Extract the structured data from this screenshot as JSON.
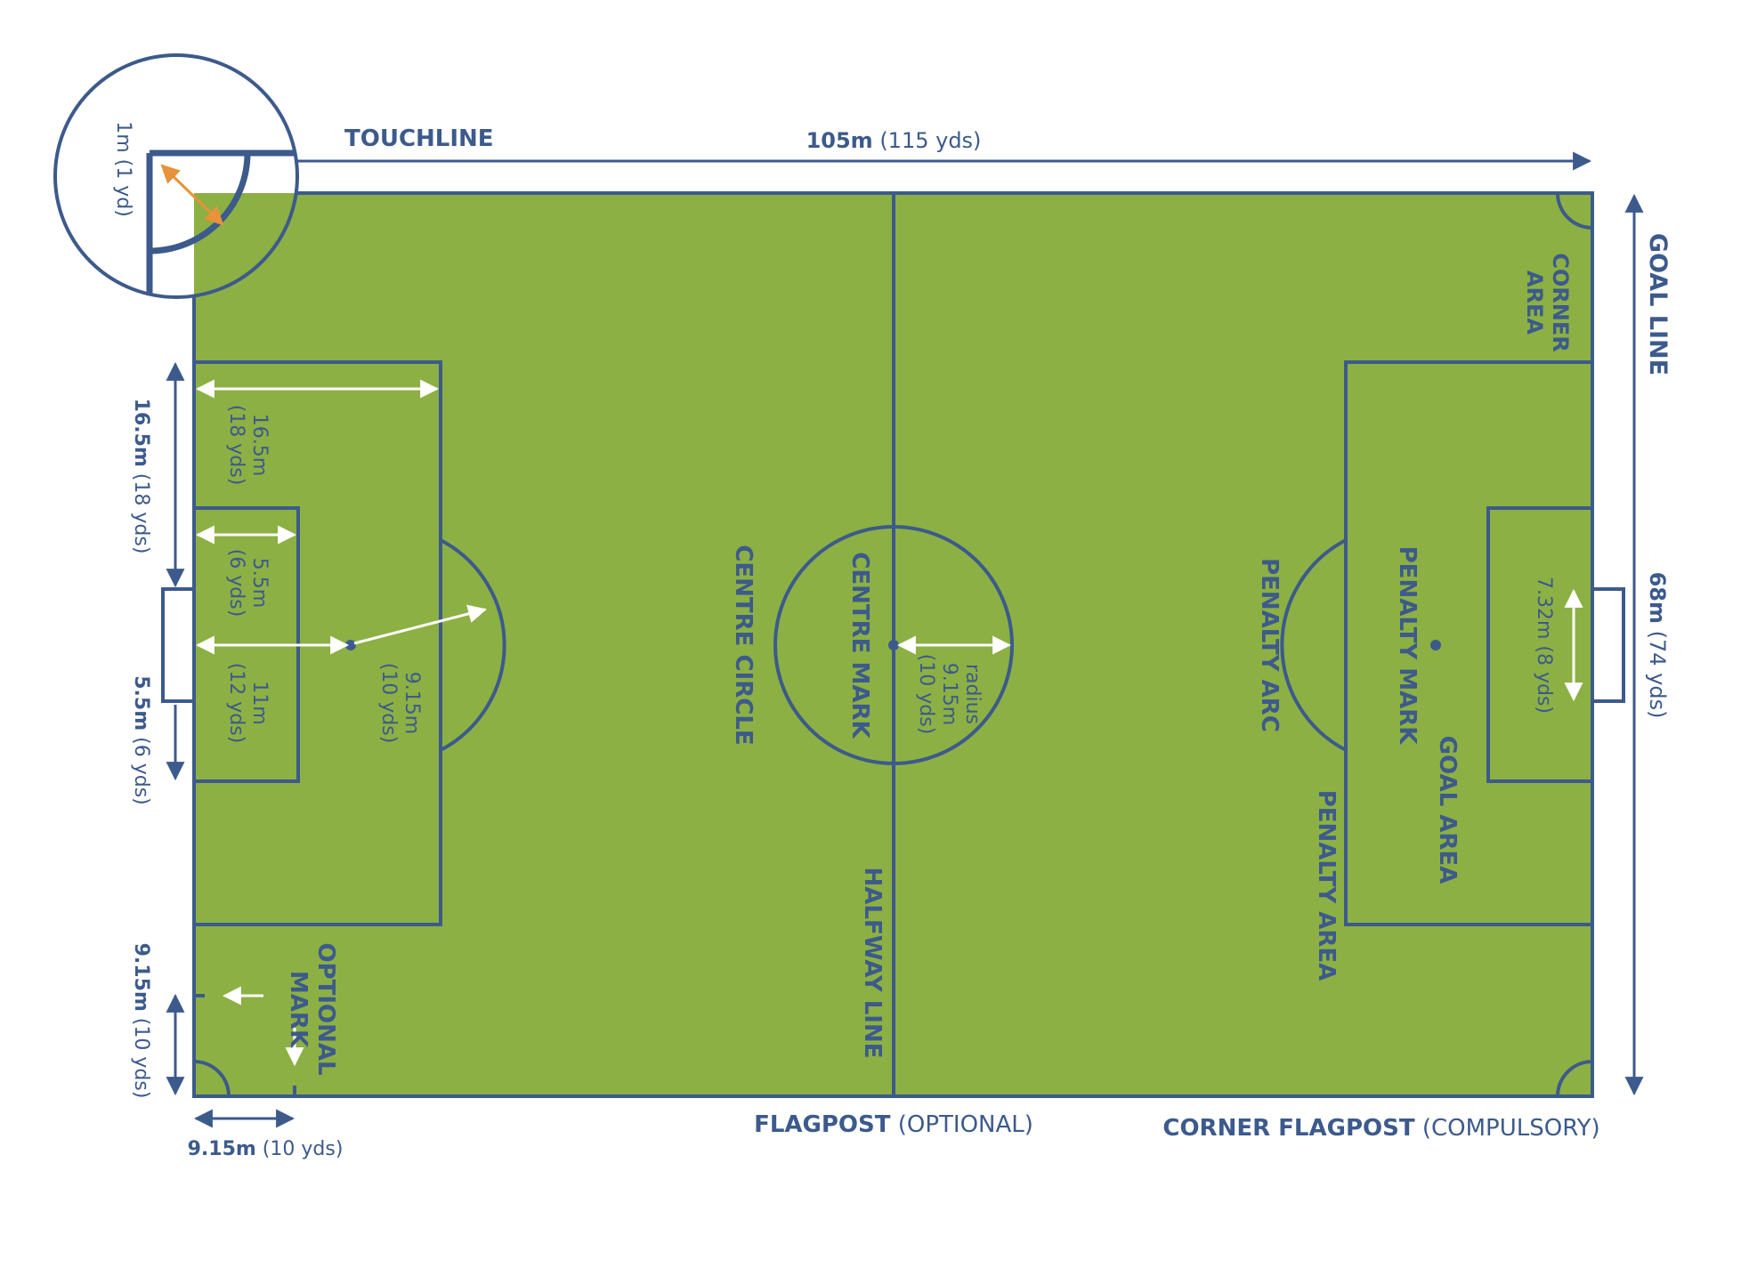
{
  "colors": {
    "grass": "#8cb043",
    "line": "#3c5a8c",
    "text": "#3c5a8c",
    "measure_white": "#ffffff",
    "measure_orange": "#e8923a"
  },
  "labels": {
    "touchline": "TOUCHLINE",
    "length_main": "105m",
    "length_sub": " (115 yds)",
    "goal_line": "GOAL LINE",
    "width_main": "68m",
    "width_sub": " (74 yds)",
    "corner_area_1": "CORNER",
    "corner_area_2": "AREA",
    "corner_radius": "1m (1 yd)",
    "penalty_area_depth_main": "16.5m",
    "penalty_area_depth_sub": " (18 yds)",
    "pa_inner_1": "16.5m",
    "pa_inner_2": "(18 yds)",
    "ga_inner_1": "5.5m",
    "ga_inner_2": "(6 yds)",
    "goal_area_side_main": "5.5m",
    "goal_area_side_sub": " (6 yds)",
    "pen_mark_1": "11m",
    "pen_mark_2": "(12 yds)",
    "arc_r_1": "9.15m",
    "arc_r_2": "(10 yds)",
    "centre_circle": "CENTRE CIRCLE",
    "centre_mark": "CENTRE MARK",
    "radius_1": "radius",
    "radius_2": "9.15m",
    "radius_3": "(10 yds)",
    "halfway_line": "HALFWAY LINE",
    "penalty_arc": "PENALTY ARC",
    "penalty_mark": "PENALTY MARK",
    "penalty_area": "PENALTY AREA",
    "goal_area": "GOAL AREA",
    "goal_width": "7.32m (8 yds)",
    "optional_mark_1": "OPTIONAL",
    "optional_mark_2": "MARK",
    "corner_dist_main": "9.15m",
    "corner_dist_sub": " (10 yds)",
    "bottom_dist_main": "9.15m",
    "bottom_dist_sub": " (10 yds)",
    "flagpost_main": "FLAGPOST",
    "flagpost_sub": " (OPTIONAL)",
    "corner_flagpost_main": "CORNER FLAGPOST",
    "corner_flagpost_sub": " (COMPULSORY)"
  }
}
